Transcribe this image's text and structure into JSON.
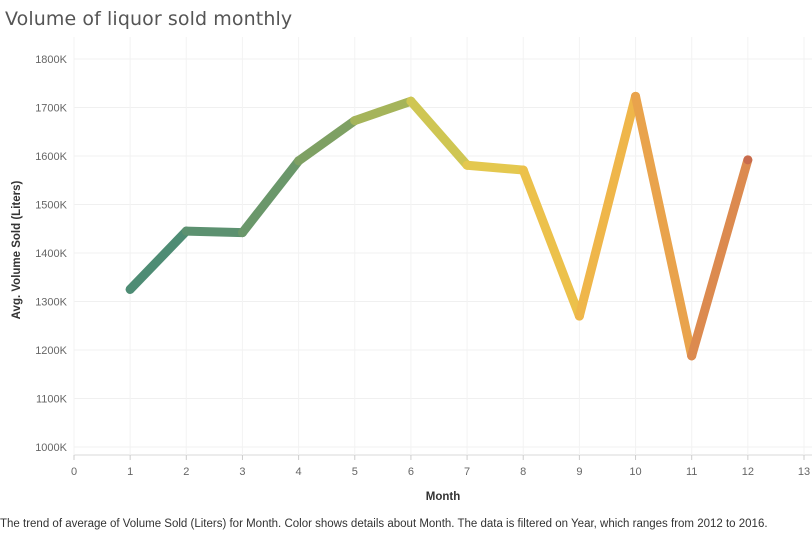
{
  "chart_data": {
    "type": "line",
    "title": "Volume of liquor sold monthly",
    "xlabel": "Month",
    "ylabel": "Avg. Volume Sold (Liters)",
    "x": [
      1,
      2,
      3,
      4,
      5,
      6,
      7,
      8,
      9,
      10,
      11,
      12
    ],
    "values": [
      1325000,
      1445000,
      1442000,
      1590000,
      1673000,
      1713000,
      1581000,
      1571000,
      1270000,
      1723000,
      1188000,
      1592000
    ],
    "xlim": [
      0,
      13
    ],
    "ylim": [
      1000000,
      1800000
    ],
    "x_ticks": [
      "0",
      "1",
      "2",
      "3",
      "4",
      "5",
      "6",
      "7",
      "8",
      "9",
      "10",
      "11",
      "12",
      "13"
    ],
    "y_ticks": [
      "1000K",
      "1100K",
      "1200K",
      "1300K",
      "1400K",
      "1500K",
      "1600K",
      "1700K",
      "1800K"
    ],
    "colors": [
      "#4e8c74",
      "#5c9170",
      "#6a976a",
      "#7ea063",
      "#a5b45a",
      "#cfc653",
      "#e4c84f",
      "#ecc14b",
      "#efb64a",
      "#e9a34c",
      "#dc8a4f",
      "#c86b4d"
    ],
    "grid": true,
    "color_by": "Month"
  },
  "caption": "The trend of average of Volume Sold (Liters) for Month.  Color shows details about Month. The data is filtered on Year, which ranges from 2012 to 2016."
}
